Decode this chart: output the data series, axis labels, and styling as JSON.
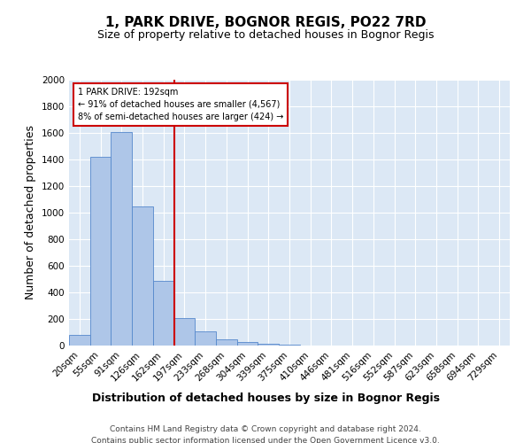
{
  "title": "1, PARK DRIVE, BOGNOR REGIS, PO22 7RD",
  "subtitle": "Size of property relative to detached houses in Bognor Regis",
  "xlabel": "Distribution of detached houses by size in Bognor Regis",
  "ylabel": "Number of detached properties",
  "bar_labels": [
    "20sqm",
    "55sqm",
    "91sqm",
    "126sqm",
    "162sqm",
    "197sqm",
    "233sqm",
    "268sqm",
    "304sqm",
    "339sqm",
    "375sqm",
    "410sqm",
    "446sqm",
    "481sqm",
    "516sqm",
    "552sqm",
    "587sqm",
    "623sqm",
    "658sqm",
    "694sqm",
    "729sqm"
  ],
  "bar_values": [
    80,
    1420,
    1610,
    1050,
    490,
    210,
    105,
    45,
    25,
    15,
    10,
    0,
    0,
    0,
    0,
    0,
    0,
    0,
    0,
    0,
    0
  ],
  "bar_color": "#aec6e8",
  "bar_edge_color": "#5588cc",
  "vline_bar_index": 5,
  "vline_color": "#cc0000",
  "annotation_text": "1 PARK DRIVE: 192sqm\n← 91% of detached houses are smaller (4,567)\n8% of semi-detached houses are larger (424) →",
  "annotation_box_color": "#ffffff",
  "annotation_box_edge": "#cc0000",
  "ylim": [
    0,
    2000
  ],
  "yticks": [
    0,
    200,
    400,
    600,
    800,
    1000,
    1200,
    1400,
    1600,
    1800,
    2000
  ],
  "footer_line1": "Contains HM Land Registry data © Crown copyright and database right 2024.",
  "footer_line2": "Contains public sector information licensed under the Open Government Licence v3.0.",
  "background_color": "#dce8f5",
  "title_fontsize": 11,
  "subtitle_fontsize": 9,
  "axis_label_fontsize": 9,
  "tick_fontsize": 7.5,
  "footer_fontsize": 6.5
}
